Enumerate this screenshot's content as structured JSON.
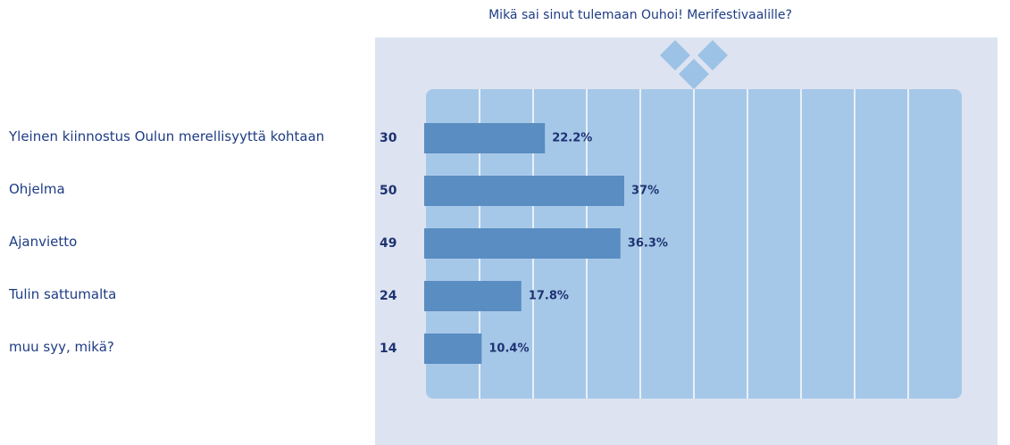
{
  "chart_data": {
    "type": "bar",
    "orientation": "horizontal",
    "title": "Mikä sai sinut tulemaan Ouhoi! Merifestivaalille?",
    "categories": [
      "Yleinen kiinnostus Oulun merellisyyttä kohtaan",
      "Ohjelma",
      "Ajanvietto",
      "Tulin sattumalta",
      "muu syy, mikä?"
    ],
    "counts": [
      30,
      50,
      49,
      24,
      14
    ],
    "values": [
      22.2,
      37,
      36.3,
      17.8,
      10.4
    ],
    "value_labels": [
      "22.2%",
      "37%",
      "36.3%",
      "17.8%",
      "10.4%"
    ],
    "color": "#5a8dc1",
    "xlim": [
      0,
      100
    ]
  }
}
